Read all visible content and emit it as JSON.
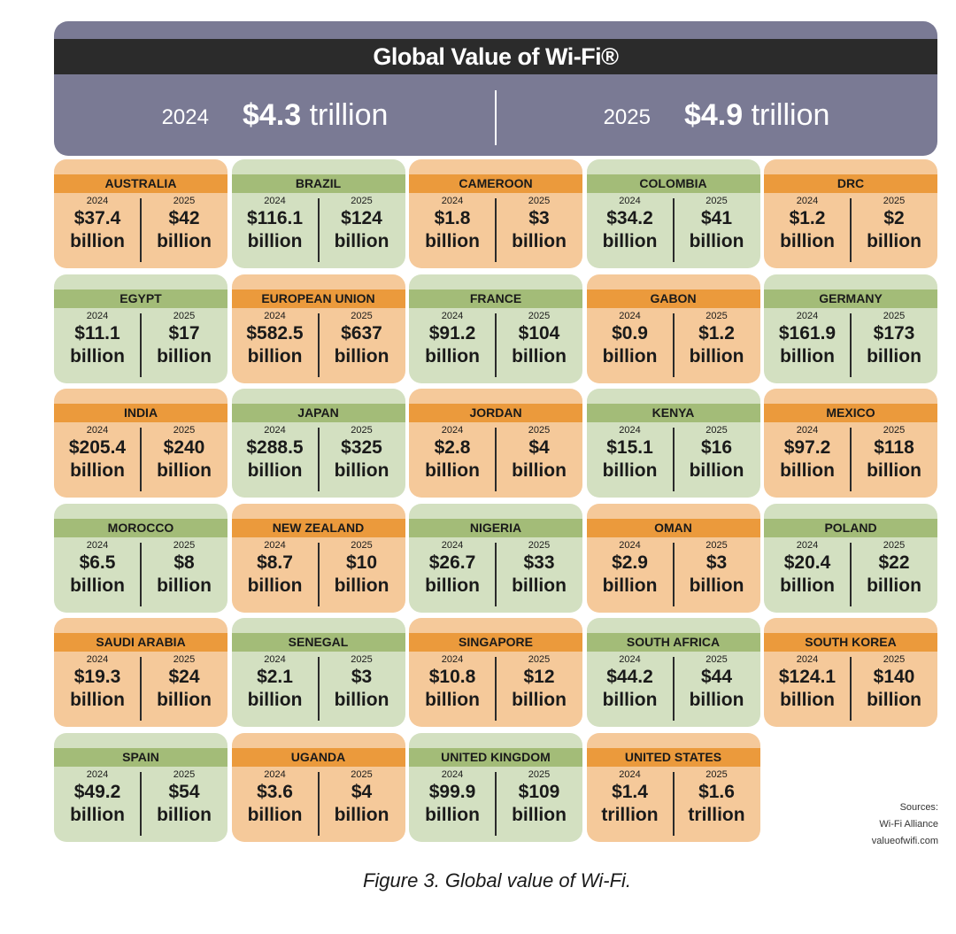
{
  "header": {
    "title": "Global Value of Wi-Fi®",
    "totals": [
      {
        "year": "2024",
        "amount": "$4.3",
        "unit": "trillion"
      },
      {
        "year": "2025",
        "amount": "$4.9",
        "unit": "trillion"
      }
    ]
  },
  "colors": {
    "orange_fill": "#f5c99a",
    "orange_band": "#eb9a3c",
    "green_fill": "#d3e0c1",
    "green_band": "#a3bc78",
    "header_bg": "#7a7a94",
    "title_band": "#2b2b2b"
  },
  "chart_data": {
    "type": "table",
    "title": "Global Value of Wi-Fi®",
    "columns": [
      "2024",
      "2025"
    ],
    "rows": [
      {
        "country": "AUSTRALIA",
        "color": "orange",
        "v2024": "$37.4",
        "u2024": "billion",
        "v2025": "$42",
        "u2025": "billion"
      },
      {
        "country": "BRAZIL",
        "color": "green",
        "v2024": "$116.1",
        "u2024": "billion",
        "v2025": "$124",
        "u2025": "billion"
      },
      {
        "country": "CAMEROON",
        "color": "orange",
        "v2024": "$1.8",
        "u2024": "billion",
        "v2025": "$3",
        "u2025": "billion"
      },
      {
        "country": "COLOMBIA",
        "color": "green",
        "v2024": "$34.2",
        "u2024": "billion",
        "v2025": "$41",
        "u2025": "billion"
      },
      {
        "country": "DRC",
        "color": "orange",
        "v2024": "$1.2",
        "u2024": "billion",
        "v2025": "$2",
        "u2025": "billion"
      },
      {
        "country": "EGYPT",
        "color": "green",
        "v2024": "$11.1",
        "u2024": "billion",
        "v2025": "$17",
        "u2025": "billion"
      },
      {
        "country": "EUROPEAN UNION",
        "color": "orange",
        "v2024": "$582.5",
        "u2024": "billion",
        "v2025": "$637",
        "u2025": "billion"
      },
      {
        "country": "FRANCE",
        "color": "green",
        "v2024": "$91.2",
        "u2024": "billion",
        "v2025": "$104",
        "u2025": "billion"
      },
      {
        "country": "GABON",
        "color": "orange",
        "v2024": "$0.9",
        "u2024": "billion",
        "v2025": "$1.2",
        "u2025": "billion"
      },
      {
        "country": "GERMANY",
        "color": "green",
        "v2024": "$161.9",
        "u2024": "billion",
        "v2025": "$173",
        "u2025": "billion"
      },
      {
        "country": "INDIA",
        "color": "orange",
        "v2024": "$205.4",
        "u2024": "billion",
        "v2025": "$240",
        "u2025": "billion"
      },
      {
        "country": "JAPAN",
        "color": "green",
        "v2024": "$288.5",
        "u2024": "billion",
        "v2025": "$325",
        "u2025": "billion"
      },
      {
        "country": "JORDAN",
        "color": "orange",
        "v2024": "$2.8",
        "u2024": "billion",
        "v2025": "$4",
        "u2025": "billion"
      },
      {
        "country": "KENYA",
        "color": "green",
        "v2024": "$15.1",
        "u2024": "billion",
        "v2025": "$16",
        "u2025": "billion"
      },
      {
        "country": "MEXICO",
        "color": "orange",
        "v2024": "$97.2",
        "u2024": "billion",
        "v2025": "$118",
        "u2025": "billion"
      },
      {
        "country": "MOROCCO",
        "color": "green",
        "v2024": "$6.5",
        "u2024": "billion",
        "v2025": "$8",
        "u2025": "billion"
      },
      {
        "country": "NEW ZEALAND",
        "color": "orange",
        "v2024": "$8.7",
        "u2024": "billion",
        "v2025": "$10",
        "u2025": "billion"
      },
      {
        "country": "NIGERIA",
        "color": "green",
        "v2024": "$26.7",
        "u2024": "billion",
        "v2025": "$33",
        "u2025": "billion"
      },
      {
        "country": "OMAN",
        "color": "orange",
        "v2024": "$2.9",
        "u2024": "billion",
        "v2025": "$3",
        "u2025": "billion"
      },
      {
        "country": "POLAND",
        "color": "green",
        "v2024": "$20.4",
        "u2024": "billion",
        "v2025": "$22",
        "u2025": "billion"
      },
      {
        "country": "SAUDI ARABIA",
        "color": "orange",
        "v2024": "$19.3",
        "u2024": "billion",
        "v2025": "$24",
        "u2025": "billion"
      },
      {
        "country": "SENEGAL",
        "color": "green",
        "v2024": "$2.1",
        "u2024": "billion",
        "v2025": "$3",
        "u2025": "billion"
      },
      {
        "country": "SINGAPORE",
        "color": "orange",
        "v2024": "$10.8",
        "u2024": "billion",
        "v2025": "$12",
        "u2025": "billion"
      },
      {
        "country": "SOUTH AFRICA",
        "color": "green",
        "v2024": "$44.2",
        "u2024": "billion",
        "v2025": "$44",
        "u2025": "billion"
      },
      {
        "country": "SOUTH KOREA",
        "color": "orange",
        "v2024": "$124.1",
        "u2024": "billion",
        "v2025": "$140",
        "u2025": "billion"
      },
      {
        "country": "SPAIN",
        "color": "green",
        "v2024": "$49.2",
        "u2024": "billion",
        "v2025": "$54",
        "u2025": "billion"
      },
      {
        "country": "UGANDA",
        "color": "orange",
        "v2024": "$3.6",
        "u2024": "billion",
        "v2025": "$4",
        "u2025": "billion"
      },
      {
        "country": "UNITED KINGDOM",
        "color": "green",
        "v2024": "$99.9",
        "u2024": "billion",
        "v2025": "$109",
        "u2025": "billion"
      },
      {
        "country": "UNITED STATES",
        "color": "orange",
        "v2024": "$1.4",
        "u2024": "trillion",
        "v2025": "$1.6",
        "u2025": "trillion"
      }
    ]
  },
  "sources": [
    "Sources:",
    "Wi-Fi Alliance",
    "valueofwifi.com"
  ],
  "caption": "Figure 3. Global value of Wi-Fi."
}
